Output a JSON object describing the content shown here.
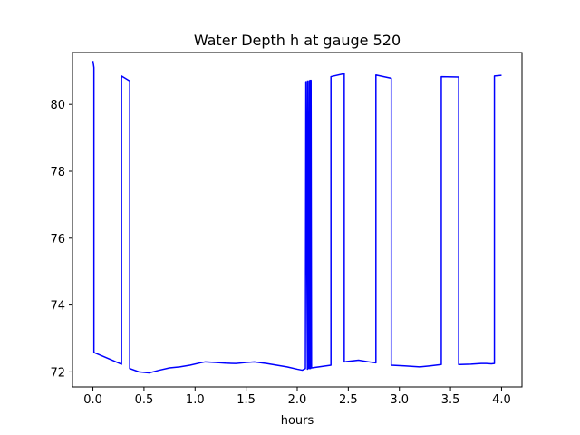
{
  "chart_data": {
    "type": "line",
    "title": "Water Depth h at gauge 520",
    "xlabel": "hours",
    "ylabel": "",
    "xlim": [
      -0.2,
      4.2
    ],
    "ylim": [
      71.55,
      81.55
    ],
    "xticks": [
      0.0,
      0.5,
      1.0,
      1.5,
      2.0,
      2.5,
      3.0,
      3.5,
      4.0
    ],
    "xtick_labels": [
      "0.0",
      "0.5",
      "1.0",
      "1.5",
      "2.0",
      "2.5",
      "3.0",
      "3.5",
      "4.0"
    ],
    "yticks": [
      72,
      74,
      76,
      78,
      80
    ],
    "ytick_labels": [
      "72",
      "74",
      "76",
      "78",
      "80"
    ],
    "grid": false,
    "series": [
      {
        "color": "#0000ff",
        "x": [
          0.0,
          0.005,
          0.01,
          0.01,
          0.28,
          0.28,
          0.36,
          0.36,
          0.45,
          0.55,
          0.65,
          0.75,
          0.85,
          0.95,
          1.05,
          1.1,
          1.2,
          1.3,
          1.4,
          1.5,
          1.58,
          1.7,
          1.8,
          1.9,
          2.0,
          2.05,
          2.08,
          2.085,
          2.1,
          2.1,
          2.11,
          2.115,
          2.12,
          2.125,
          2.13,
          2.135,
          2.14,
          2.14,
          2.33,
          2.33,
          2.46,
          2.46,
          2.6,
          2.7,
          2.77,
          2.77,
          2.92,
          2.92,
          3.05,
          3.2,
          3.3,
          3.41,
          3.41,
          3.58,
          3.58,
          3.7,
          3.8,
          3.85,
          3.9,
          3.93,
          3.93,
          4.0
        ],
        "y": [
          81.3,
          81.2,
          81.1,
          72.58,
          72.23,
          80.85,
          80.7,
          72.1,
          72.0,
          71.97,
          72.05,
          72.12,
          72.15,
          72.2,
          72.27,
          72.3,
          72.28,
          72.26,
          72.25,
          72.28,
          72.3,
          72.25,
          72.2,
          72.15,
          72.08,
          72.05,
          72.1,
          80.68,
          72.08,
          80.7,
          72.1,
          80.7,
          72.1,
          80.72,
          72.1,
          80.72,
          72.12,
          72.12,
          72.2,
          80.83,
          80.92,
          72.3,
          72.35,
          72.3,
          72.27,
          80.88,
          80.78,
          72.2,
          72.18,
          72.15,
          72.18,
          72.22,
          80.83,
          80.82,
          72.22,
          72.23,
          72.25,
          72.25,
          72.24,
          72.25,
          80.85,
          80.87
        ]
      }
    ]
  }
}
